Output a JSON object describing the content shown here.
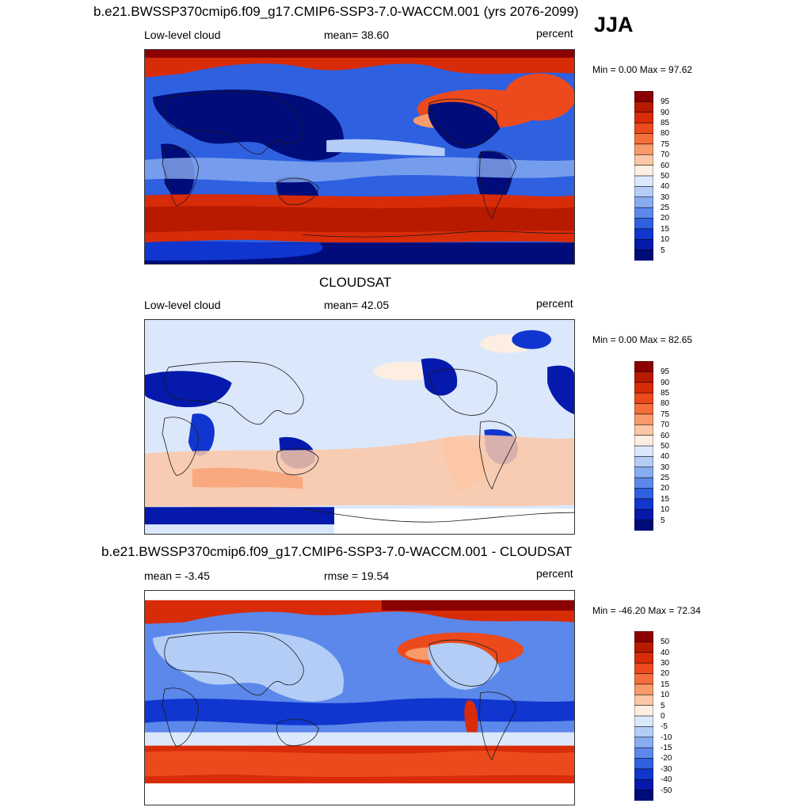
{
  "season": "JJA",
  "panels": [
    {
      "title": "b.e21.BWSSP370cmip6.f09_g17.CMIP6-SSP3-7.0-WACCM.001 (yrs 2076-2099)",
      "left_label": "Low-level cloud",
      "center_label": "mean=  38.60",
      "units": "percent",
      "minmax": "Min =   0.00 Max =  97.62",
      "colorbar_labels": [
        "95",
        "90",
        "85",
        "80",
        "75",
        "70",
        "60",
        "50",
        "40",
        "30",
        "25",
        "20",
        "15",
        "10",
        "5"
      ]
    },
    {
      "title": "CLOUDSAT",
      "left_label": "Low-level cloud",
      "center_label": "mean=  42.05",
      "units": "percent",
      "minmax": "Min =   0.00 Max =  82.65",
      "colorbar_labels": [
        "95",
        "90",
        "85",
        "80",
        "75",
        "70",
        "60",
        "50",
        "40",
        "30",
        "25",
        "20",
        "15",
        "10",
        "5"
      ]
    },
    {
      "title": "b.e21.BWSSP370cmip6.f09_g17.CMIP6-SSP3-7.0-WACCM.001 - CLOUDSAT",
      "left_label": "mean =  -3.45",
      "center_label": "rmse =  19.54",
      "units": "percent",
      "minmax": "Min = -46.20 Max =  72.34",
      "colorbar_labels": [
        "50",
        "40",
        "30",
        "20",
        "15",
        "10",
        "5",
        "0",
        "-5",
        "-10",
        "-15",
        "-20",
        "-30",
        "-40",
        "-50"
      ]
    }
  ],
  "colors": {
    "colorbar": [
      "#8b0000",
      "#b81a00",
      "#d82b08",
      "#ec4a1c",
      "#f56f3d",
      "#f99a6a",
      "#fcc7a6",
      "#fdeee1",
      "#dbe8fb",
      "#b3cdf6",
      "#88acf0",
      "#5b88ea",
      "#2f60e0",
      "#1036cf",
      "#0519ac",
      "#000c7a"
    ],
    "ocean_blue": "#1e50d8",
    "coast": "#1a1a1a"
  }
}
